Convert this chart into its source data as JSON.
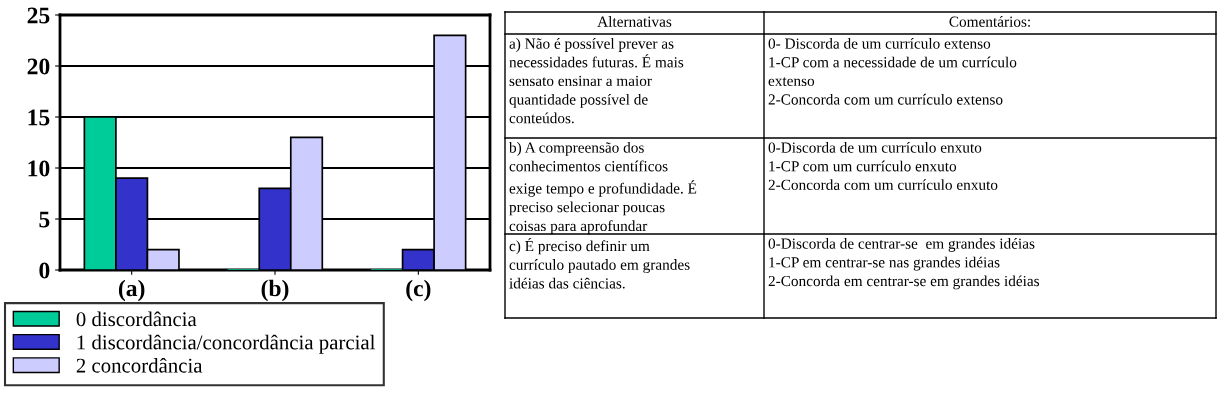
{
  "chart_data": {
    "type": "bar",
    "categories": [
      "(a)",
      "(b)",
      "(c)"
    ],
    "series": [
      {
        "name": "0 discordância",
        "color": "#00cc99",
        "values": [
          15,
          0,
          0
        ]
      },
      {
        "name": "1 discordância/concordância parcial",
        "color": "#3333cc",
        "values": [
          9,
          8,
          2
        ]
      },
      {
        "name": "2 concordância",
        "color": "#ccccff",
        "values": [
          2,
          13,
          23
        ]
      }
    ],
    "ylim": [
      0,
      25
    ],
    "yticks": [
      0,
      5,
      10,
      15,
      20,
      25
    ],
    "grid": "y",
    "legend": "bottom",
    "annotations": [
      "Alternativas",
      "Comentários:",
      "a) Não é possível prever as\nnecessidades futuras. É mais\nsensato ensinar a maior\nquantidade possível de\nconteúdos.",
      "0- Discorda de um currículo extenso\n1-CP com a necessidade de um currículo\nextenso\n2-Concorda com um currículo extenso",
      "b) A compreensão dos\nconhecimentos científicos\nexige tempo e profundidade. É\npreciso selecionar poucas\ncoisas para aprofundar",
      "0-Discorda de um currículo enxuto\n1-CP com um currículo enxuto\n2-Concorda com um currículo enxuto",
      "c) É preciso definir um\ncurrículo pautado em grandes\nidéias das ciências.",
      "0-Discorda de centrar-se  em grandes idéias\n1-CP em centrar-se nas grandes idéias\n2-Concorda em centrar-se em grandes idéias"
    ]
  }
}
